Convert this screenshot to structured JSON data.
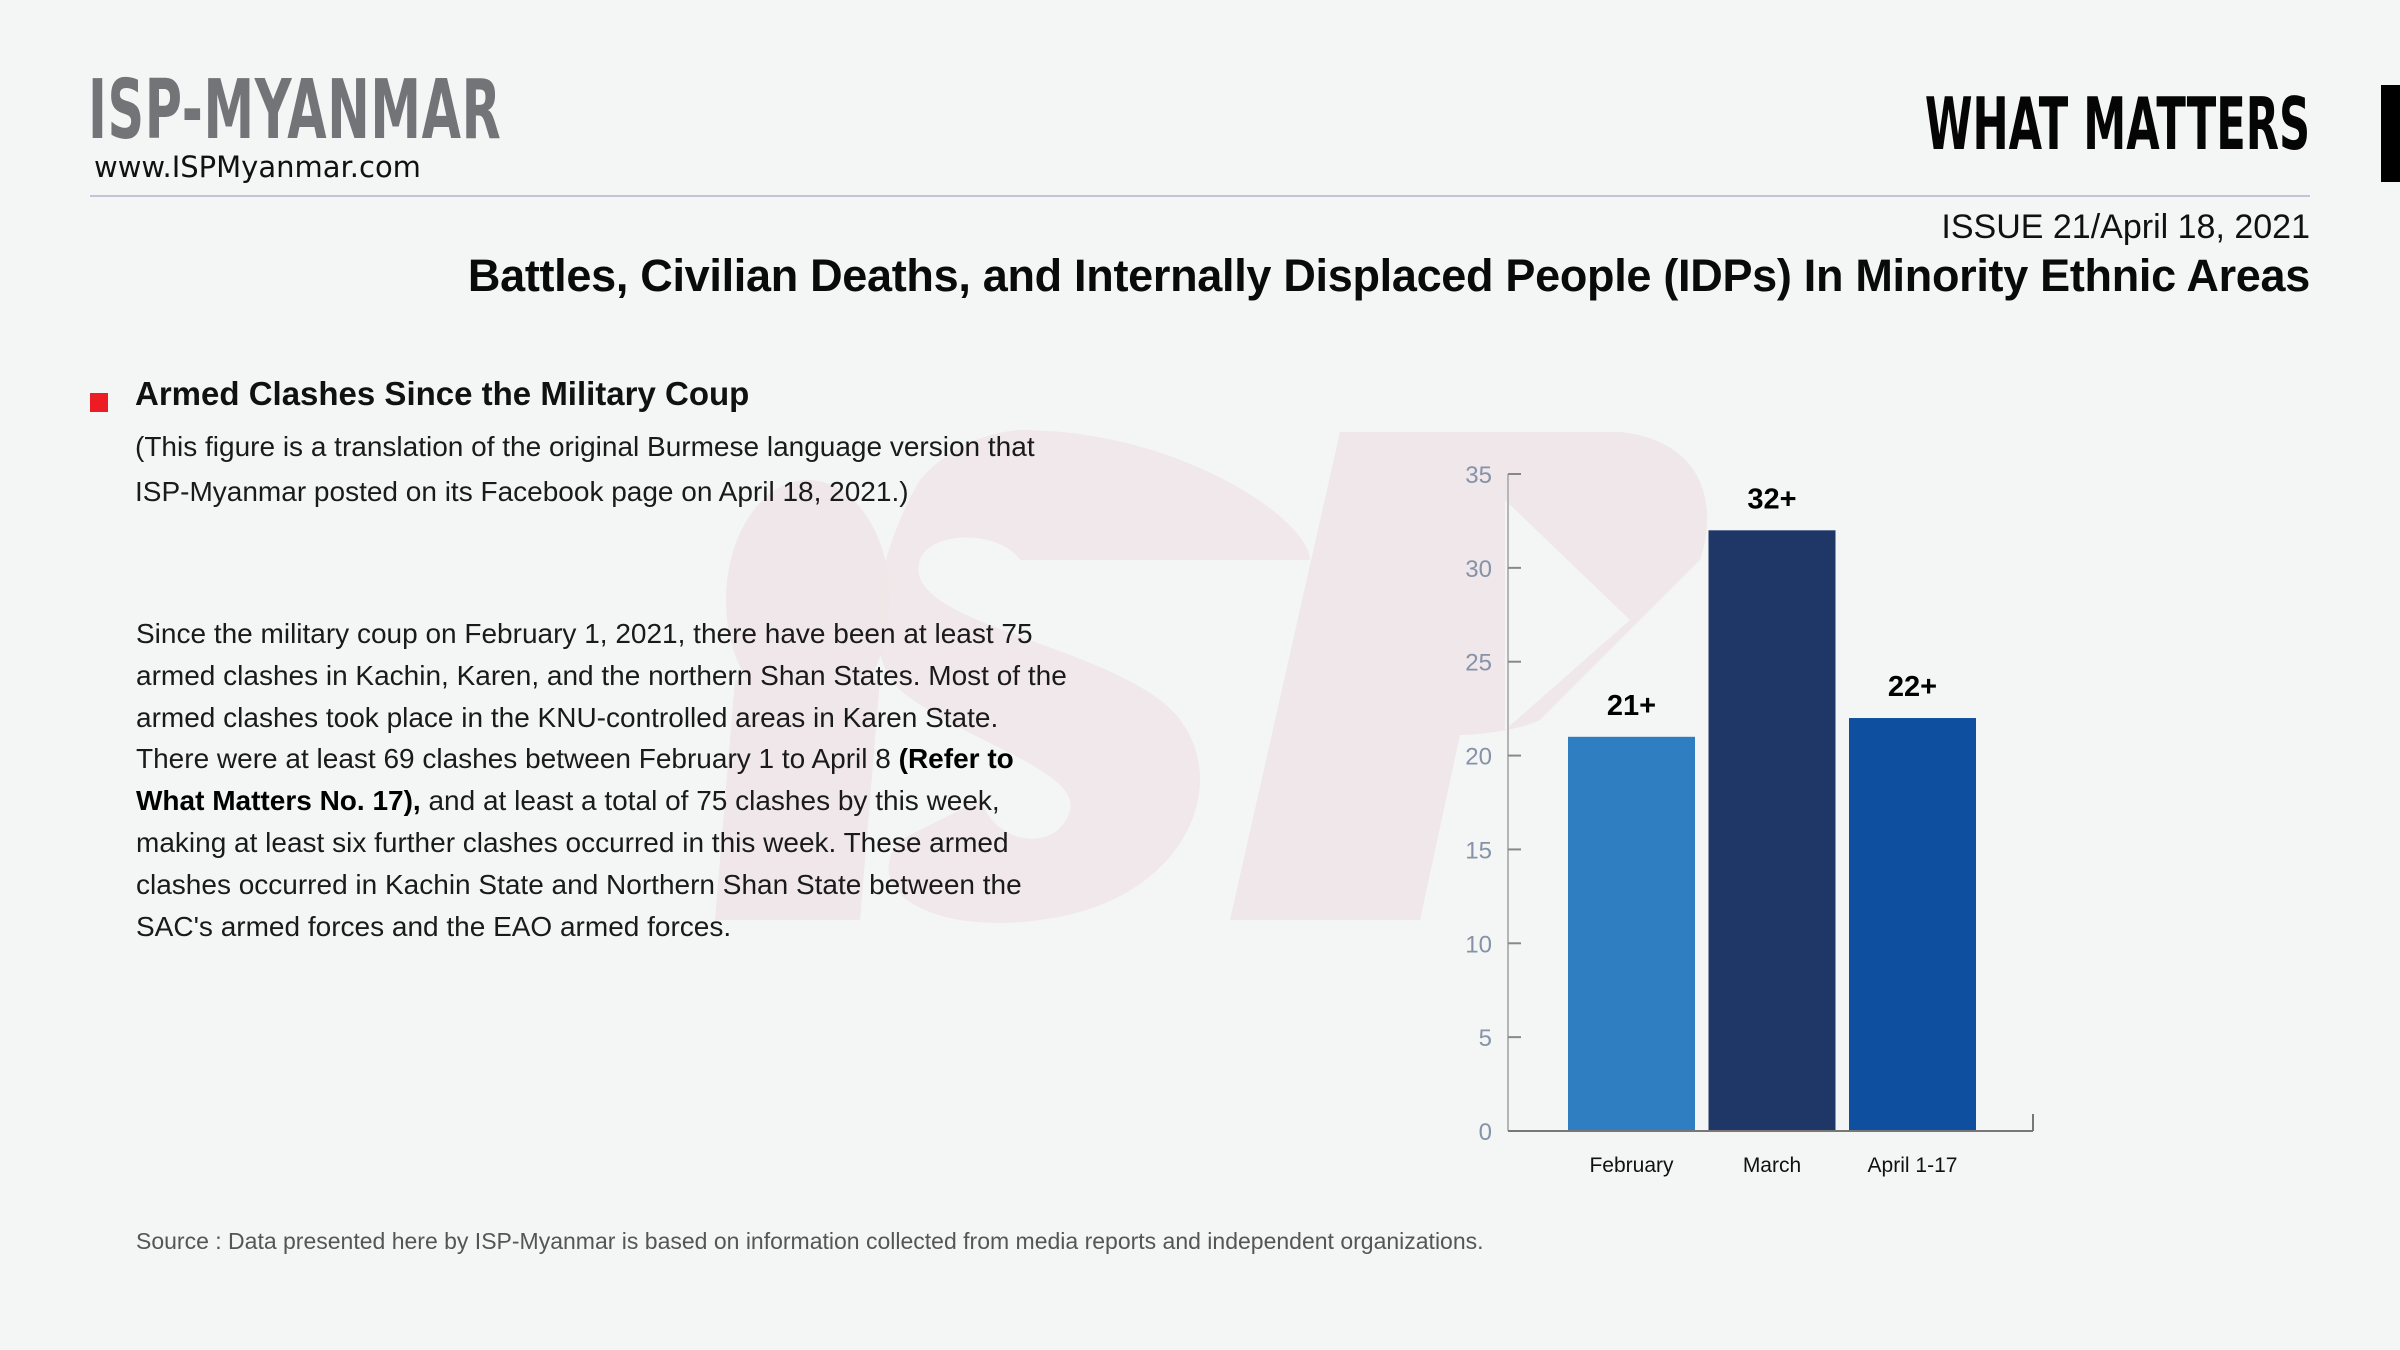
{
  "header": {
    "brand": "ISP-MYANMAR",
    "brand_url": "www.ISPMyanmar.com",
    "series_title": "WHAT MATTERS",
    "issue_label": "ISSUE 21",
    "issue_date": "/April 18, 2021",
    "report_title": "Battles, Civilian Deaths, and Internally Displaced People (IDPs) In Minority Ethnic Areas"
  },
  "section": {
    "title": "Armed Clashes Since the Military Coup",
    "note_line1": "(This figure is a translation of the original Burmese language version that",
    "note_line2": "ISP-Myanmar posted on its Facebook page on April 18, 2021.)",
    "body_part1": "Since the military coup on February 1, 2021, there have been at least 75 armed clashes in Kachin, Karen, and the northern Shan States. Most of the armed clashes took place in the KNU-controlled areas in Karen State. There were at least 69 clashes between February 1 to April 8 ",
    "body_bold": "(Refer to What Matters No. 17),",
    "body_part2": " and at least a total of 75 clashes by this week, making at least six further clashes occurred in this week. These armed clashes occurred in Kachin State and Northern Shan State between the SAC's armed forces and the EAO armed forces."
  },
  "footer": {
    "source": "Source :  Data presented here by ISP-Myanmar is based on information collected from media reports and independent organizations."
  },
  "colors": {
    "accent_red": "#ed1c24",
    "bar_february": "#2e7ec1",
    "bar_march": "#1f3767",
    "bar_april": "#0e4f9f",
    "watermark": "#efe7e9"
  },
  "chart_data": {
    "type": "bar",
    "title": "",
    "xlabel": "",
    "ylabel": "",
    "categories": [
      "February",
      "March",
      "April 1-17"
    ],
    "values": [
      21,
      32,
      22
    ],
    "value_labels": [
      "21+",
      "32+",
      "22+"
    ],
    "ylim": [
      0,
      35
    ],
    "yticks": [
      0,
      5,
      10,
      15,
      20,
      25,
      30,
      35
    ],
    "grid": false,
    "legend": "none"
  }
}
